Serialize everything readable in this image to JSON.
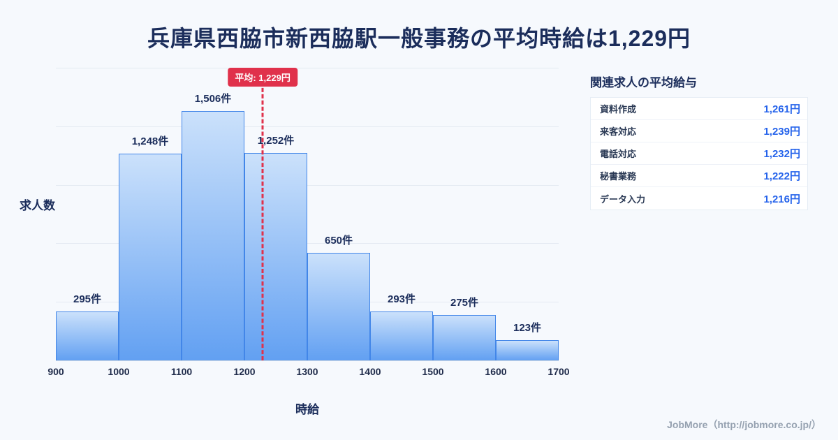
{
  "page": {
    "title": "兵庫県西脇市新西脇駅一般事務の平均時給は1,229円",
    "footer": "JobMore（http://jobmore.co.jp/）"
  },
  "chart_data": {
    "type": "bar",
    "title": "兵庫県西脇市新西脇駅一般事務の平均時給は1,229円",
    "xlabel": "時給",
    "ylabel": "求人数",
    "x_ticks": [
      "900",
      "1000",
      "1100",
      "1200",
      "1300",
      "1400",
      "1500",
      "1600",
      "1700"
    ],
    "bin_edges": [
      900,
      1000,
      1100,
      1200,
      1300,
      1400,
      1500,
      1600,
      1700
    ],
    "values": [
      295,
      1248,
      1506,
      1252,
      650,
      293,
      275,
      123
    ],
    "bar_labels": [
      "295件",
      "1,248件",
      "1,506件",
      "1,252件",
      "650件",
      "293件",
      "275件",
      "123件"
    ],
    "average": 1229,
    "average_label": "平均: 1,229円",
    "xlim": [
      900,
      1700
    ],
    "ylim": [
      0,
      1770
    ],
    "grid": "horizontal",
    "legend": "none"
  },
  "related_jobs": {
    "title": "関連求人の平均給与",
    "rows": [
      {
        "label": "資料作成",
        "value": "1,261円"
      },
      {
        "label": "来客対応",
        "value": "1,239円"
      },
      {
        "label": "電話対応",
        "value": "1,232円"
      },
      {
        "label": "秘書業務",
        "value": "1,222円"
      },
      {
        "label": "データ入力",
        "value": "1,216円"
      }
    ]
  },
  "colors": {
    "page_bg": "#f6f9fd",
    "title_text": "#1b2d5b",
    "accent_blue": "#2563eb",
    "bar_fill_top": "#cbe1fb",
    "bar_fill_bottom": "#62a0f2",
    "bar_border": "#4286e8",
    "average_line": "#e0314b",
    "badge_bg": "#e0314b"
  }
}
